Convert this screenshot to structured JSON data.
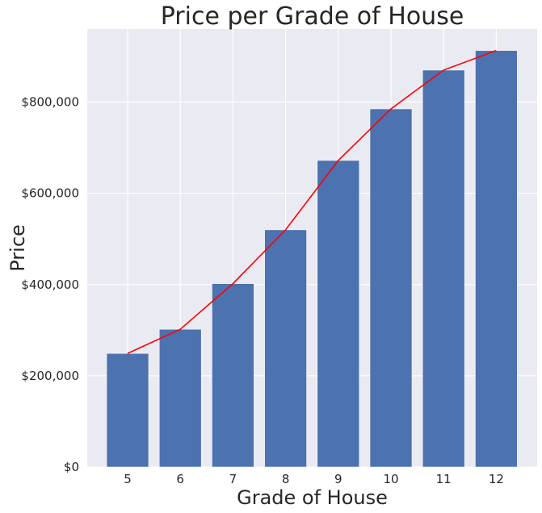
{
  "chart_data": {
    "type": "bar",
    "title": "Price per Grade of House",
    "xlabel": "Grade of House",
    "ylabel": "Price",
    "categories": [
      "5",
      "6",
      "7",
      "8",
      "9",
      "10",
      "11",
      "12"
    ],
    "series": [
      {
        "type": "bar",
        "values": [
          249000,
          302000,
          402000,
          520000,
          672000,
          785000,
          870000,
          913000
        ],
        "color": "#4c72b0"
      },
      {
        "type": "line",
        "values": [
          249000,
          302000,
          402000,
          520000,
          672000,
          785000,
          870000,
          913000
        ],
        "color": "#ff0000"
      }
    ],
    "ylim": [
      0,
      960000
    ],
    "yticks": [
      0,
      200000,
      400000,
      600000,
      800000
    ],
    "ytick_labels": [
      "$0",
      "$200,000",
      "$400,000",
      "$600,000",
      "$800,000"
    ],
    "grid": true,
    "background": "#eaeaf2"
  }
}
